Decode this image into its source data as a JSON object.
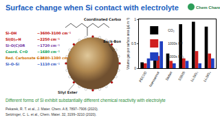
{
  "header": {
    "title": "Surface change when Si contact with electrolyte",
    "logo": "Chem Channel"
  },
  "diagram": {
    "labels": {
      "top": "Coordinated Carbonyl",
      "right": "Back-Bonded Si–H",
      "bottom": "Silyl Ester"
    },
    "bands": [
      {
        "group": "Si–OH",
        "wavenumber": "~3600–3100 cm⁻¹",
        "color": "#c00000"
      },
      {
        "group": "Si(O)₂-H",
        "wavenumber": "~2250 cm⁻¹",
        "color": "#c00000"
      },
      {
        "group": "Si–O(C)OR",
        "wavenumber": "~1720 cm⁻¹",
        "color": "#7030a0"
      },
      {
        "group": "Coord. C=O",
        "wavenumber": "~1680 cm⁻¹",
        "color": "#00a050"
      },
      {
        "group": "Red. Carbonate C–H",
        "wavenumber": "~1480–1380 cm⁻¹",
        "color": "#d07000"
      },
      {
        "group": "Si–O–Si",
        "wavenumber": "~1110 cm⁻¹",
        "color": "#1f4fbf"
      }
    ]
  },
  "chart_data": {
    "type": "bar",
    "ylabel": "Volume gas per surface area (μL m⁻²)",
    "categories": [
      "PECVD",
      "Nanoarmor",
      "Stober",
      "SS505",
      "Li₂SiO₃",
      "Li₄SiO₄"
    ],
    "series": [
      {
        "name": "CO₂",
        "color": "#000000",
        "values": [
          0.12,
          0.2,
          0.3,
          0.9,
          0.95,
          0.85
        ]
      },
      {
        "name": "1000s HF",
        "color": "#d02020",
        "values": [
          0.1,
          0.25,
          0.15,
          0.2,
          0.35,
          0.3
        ]
      },
      {
        "name": "1000s PF₅",
        "color": "#2040c0",
        "values": [
          0.2,
          0.55,
          0.1,
          0.15,
          0.1,
          0.2
        ]
      }
    ],
    "ylim": [
      0,
      1
    ],
    "yticks": [
      0,
      0.5,
      1
    ],
    "grid": false,
    "legend": "top-left"
  },
  "caption": "Different forms of Si exhibit substantially different chemical reactivity with electrolyte",
  "references": [
    "Pekarek, R. T. et al., J. Mater. Chem. A 8, 7897–7906 (2020).",
    "Seitzinger, C. L. et al., Chem. Mater. 32, 3199–3210 (2020)."
  ]
}
